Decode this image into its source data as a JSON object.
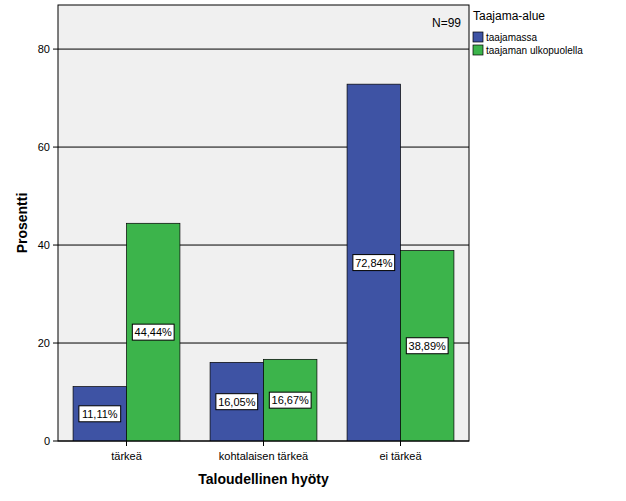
{
  "chart_data": {
    "type": "bar",
    "x_label": "Taloudellinen hyöty",
    "y_label": "Prosentti",
    "annotation": "N=99",
    "legend_title": "Taajama-alue",
    "legend": "right",
    "categories": [
      "tärkeä",
      "kohtalaisen tärkeä",
      "ei tärkeä"
    ],
    "series": [
      {
        "name": "taajamassa",
        "color": "#3e53a4",
        "values": [
          11.11,
          16.05,
          72.84
        ],
        "value_labels": [
          "11,11%",
          "16,05%",
          "72,84%"
        ]
      },
      {
        "name": "taajaman ulkopuolella",
        "color": "#3cb44b",
        "values": [
          44.44,
          16.67,
          38.89
        ],
        "value_labels": [
          "44,44%",
          "16,67%",
          "38,89%"
        ]
      }
    ],
    "ylim": [
      0,
      89
    ],
    "yticks": [
      0,
      20,
      40,
      60,
      80
    ],
    "grid": true,
    "data_labels": true
  }
}
